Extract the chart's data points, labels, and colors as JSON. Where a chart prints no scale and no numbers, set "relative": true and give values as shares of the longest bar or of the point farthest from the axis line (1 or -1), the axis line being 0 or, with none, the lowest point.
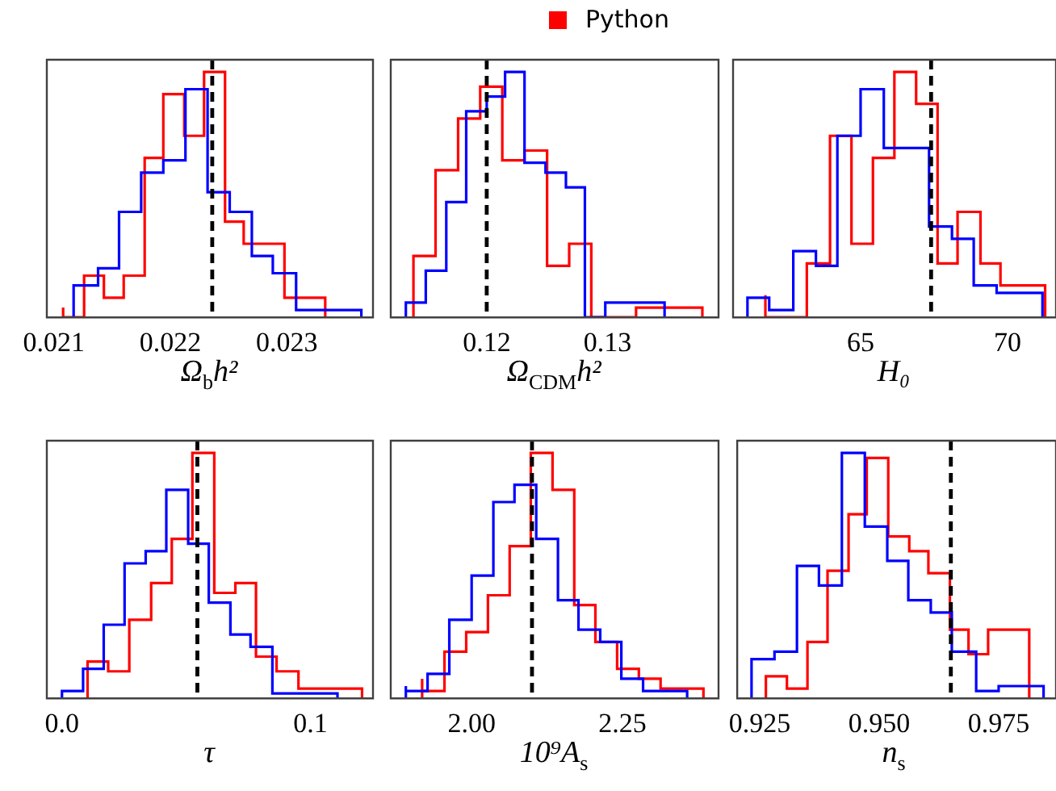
{
  "chart_data": [
    {
      "type": "step",
      "relative": true,
      "legend": "top",
      "tick_labels": "x",
      "xlabel": "Ω$_{b}$h²",
      "xlim": [
        0.02094,
        0.02374
      ],
      "xticks": [
        {
          "value": 0.021,
          "label": "0.021"
        },
        {
          "value": 0.022,
          "label": "0.022"
        },
        {
          "value": 0.023,
          "label": "0.023"
        }
      ],
      "ref_lines": [
        {
          "axis": "x",
          "value": 0.02236,
          "color": "#000000",
          "line_style": "dashed"
        }
      ],
      "series": [
        {
          "color": "#0000ff",
          "x": [
            0.02117,
            0.02117,
            0.02138,
            0.02156,
            0.02175,
            0.02194,
            0.02213,
            0.02232,
            0.02251,
            0.0227,
            0.02288,
            0.02308,
            0.02327,
            0.02346,
            0.02364,
            0.02364
          ],
          "values": [
            0,
            0.08,
            0.13,
            0.2,
            0.43,
            0.59,
            0.64,
            0.93,
            0.51,
            0.43,
            0.25,
            0.18,
            0.03,
            0.03,
            0.03,
            0
          ]
        },
        {
          "name": "Python",
          "color": "#ff0000",
          "x": [
            0.02108,
            0.02108,
            0.02126,
            0.02143,
            0.0216,
            0.02178,
            0.02194,
            0.02212,
            0.02229,
            0.02247,
            0.02263,
            0.02281,
            0.02298,
            0.02315,
            0.02333,
            0.02333
          ],
          "values": [
            0,
            0.04,
            0,
            0.17,
            0.08,
            0.17,
            0.65,
            0.91,
            0.74,
            1,
            0.39,
            0.3,
            0.3,
            0.08,
            0.08,
            0
          ]
        }
      ]
    },
    {
      "type": "step",
      "relative": true,
      "tick_labels": "x",
      "xlabel": "Ω$_{CDM}$h²",
      "xlim": [
        0.11205,
        0.1392
      ],
      "xticks": [
        {
          "value": 0.12,
          "label": "0.12"
        },
        {
          "value": 0.13,
          "label": "0.13"
        }
      ],
      "ref_lines": [
        {
          "axis": "x",
          "value": 0.12,
          "color": "#000000",
          "line_style": "dashed"
        }
      ],
      "series": [
        {
          "color": "#0000ff",
          "x": [
            0.1133,
            0.1133,
            0.11495,
            0.11665,
            0.1183,
            0.12,
            0.12152,
            0.12313,
            0.12487,
            0.12656,
            0.12813,
            0.12982,
            0.13147,
            0.13313,
            0.13473,
            0.13473
          ],
          "values": [
            0,
            0.06,
            0.06,
            0.19,
            0.47,
            0.84,
            0.9,
            1,
            0.63,
            0.59,
            0.53,
            0,
            0.06,
            0.06,
            0.06,
            0
          ]
        },
        {
          "color": "#ff0000",
          "x": [
            0.11393,
            0.11393,
            0.11576,
            0.11763,
            0.11946,
            0.12129,
            0.12313,
            0.125,
            0.12683,
            0.12866,
            0.13049,
            0.13237,
            0.1342,
            0.13603,
            0.13786,
            0.13786
          ],
          "values": [
            0,
            0.25,
            0.25,
            0.6,
            0.81,
            0.94,
            0.64,
            0.68,
            0.21,
            0.3,
            0,
            0,
            0.04,
            0.04,
            0.04,
            0
          ]
        }
      ]
    },
    {
      "type": "step",
      "relative": true,
      "tick_labels": "x",
      "xlabel": "H₀",
      "xlim": [
        60.66,
        71.65
      ],
      "xticks": [
        {
          "value": 65,
          "label": "65"
        },
        {
          "value": 70,
          "label": "70"
        }
      ],
      "ref_lines": [
        {
          "axis": "x",
          "value": 67.4,
          "color": "#000000",
          "line_style": "dashed"
        }
      ],
      "series": [
        {
          "color": "#0000ff",
          "x": [
            61.15,
            61.15,
            61.89,
            62.71,
            63.48,
            64.21,
            65,
            65.79,
            66.56,
            67.33,
            68.11,
            68.85,
            69.63,
            70.37,
            71.19,
            71.19
          ],
          "values": [
            0,
            0.03,
            0.08,
            0.03,
            0.27,
            0.21,
            0.74,
            0.93,
            0.69,
            0.69,
            0.37,
            0.32,
            0.13,
            0.1,
            0.1,
            0
          ]
        },
        {
          "color": "#ff0000",
          "x": [
            61.76,
            61.76,
            62.49,
            63.17,
            63.96,
            64.69,
            65.42,
            66.15,
            66.89,
            67.62,
            68.3,
            69.08,
            69.76,
            70.55,
            71.28,
            71.28
          ],
          "values": [
            0,
            0.09,
            0,
            0,
            0.22,
            0.74,
            0.3,
            0.65,
            1,
            0.87,
            0.22,
            0.43,
            0.22,
            0.13,
            0.13,
            0
          ]
        }
      ]
    },
    {
      "type": "step",
      "relative": true,
      "tick_labels": "x",
      "xlabel": "τ",
      "xlim": [
        -0.0061,
        0.1252
      ],
      "xticks": [
        {
          "value": 0,
          "label": "0.0"
        },
        {
          "value": 0.1,
          "label": "0.1"
        }
      ],
      "ref_lines": [
        {
          "axis": "x",
          "value": 0.0545,
          "color": "#000000",
          "line_style": "dashed"
        }
      ],
      "series": [
        {
          "color": "#0000ff",
          "x": [
            0,
            0,
            0.0085,
            0.0168,
            0.0252,
            0.0337,
            0.042,
            0.0508,
            0.0591,
            0.0678,
            0.0759,
            0.0847,
            0.0934,
            0.1022,
            0.1109,
            0.1109
          ],
          "values": [
            0,
            0.02,
            0.03,
            0.12,
            0.3,
            0.55,
            0.6,
            0.85,
            0.63,
            0.39,
            0.26,
            0.21,
            0.02,
            0.02,
            0.02,
            0
          ]
        },
        {
          "color": "#ff0000",
          "x": [
            0.0103,
            0.0103,
            0.0186,
            0.0271,
            0.0359,
            0.0442,
            0.0525,
            0.0613,
            0.0698,
            0.0781,
            0.0864,
            0.0952,
            0.1037,
            0.112,
            0.1208,
            0.1208
          ],
          "values": [
            0,
            0.07,
            0.15,
            0.11,
            0.32,
            0.47,
            0.65,
            1,
            0.43,
            0.47,
            0.17,
            0.11,
            0.04,
            0.04,
            0.04,
            0
          ]
        }
      ]
    },
    {
      "type": "step",
      "relative": true,
      "tick_labels": "x",
      "xlabel": "10⁹A$_{s}$",
      "xlim": [
        1.866,
        2.409
      ],
      "xticks": [
        {
          "value": 2,
          "label": "2.00"
        },
        {
          "value": 2.25,
          "label": "2.25"
        }
      ],
      "ref_lines": [
        {
          "axis": "x",
          "value": 2.1,
          "color": "#000000",
          "line_style": "dashed"
        }
      ],
      "series": [
        {
          "color": "#0000ff",
          "x": [
            1.891,
            1.891,
            1.927,
            1.963,
            2,
            2.036,
            2.071,
            2.107,
            2.143,
            2.177,
            2.213,
            2.248,
            2.284,
            2.321,
            2.357,
            2.357
          ],
          "values": [
            0,
            0.05,
            0.03,
            0.1,
            0.32,
            0.5,
            0.8,
            0.87,
            0.65,
            0.4,
            0.28,
            0.23,
            0.08,
            0.03,
            0.03,
            0
          ]
        },
        {
          "color": "#ff0000",
          "x": [
            1.918,
            1.918,
            1.955,
            1.991,
            2.027,
            2.063,
            2.098,
            2.134,
            2.17,
            2.205,
            2.241,
            2.277,
            2.313,
            2.348,
            2.384,
            2.384
          ],
          "values": [
            0,
            0.08,
            0.03,
            0.19,
            0.27,
            0.42,
            0.62,
            1,
            0.85,
            0.38,
            0.23,
            0.12,
            0.08,
            0.04,
            0.04,
            0
          ]
        }
      ]
    },
    {
      "type": "step",
      "relative": true,
      "tick_labels": "x",
      "xlabel": "n$_{s}$",
      "xlim": [
        0.9203,
        0.987
      ],
      "xticks": [
        {
          "value": 0.925,
          "label": "0.925"
        },
        {
          "value": 0.95,
          "label": "0.950"
        },
        {
          "value": 0.975,
          "label": "0.975"
        }
      ],
      "ref_lines": [
        {
          "axis": "x",
          "value": 0.965,
          "color": "#000000",
          "line_style": "dashed"
        }
      ],
      "series": [
        {
          "color": "#0000ff",
          "x": [
            0.9233,
            0.9233,
            0.9281,
            0.9328,
            0.9374,
            0.9422,
            0.947,
            0.9517,
            0.9561,
            0.9608,
            0.9652,
            0.9703,
            0.975,
            0.9797,
            0.9844,
            0.9844
          ],
          "values": [
            0,
            0.02,
            0.16,
            0.19,
            0.54,
            0.46,
            1,
            0.7,
            0.56,
            0.4,
            0.35,
            0.19,
            0.03,
            0.05,
            0.05,
            0
          ]
        },
        {
          "color": "#ff0000",
          "x": [
            0.9263,
            0.9263,
            0.9307,
            0.935,
            0.9392,
            0.9436,
            0.9474,
            0.9519,
            0.9563,
            0.9603,
            0.9648,
            0.9687,
            0.9728,
            0.9772,
            0.9814,
            0.9814
          ],
          "values": [
            0,
            0.09,
            0.09,
            0.04,
            0.23,
            0.52,
            0.75,
            0.98,
            0.66,
            0.6,
            0.51,
            0.28,
            0.18,
            0.28,
            0.28,
            0
          ]
        }
      ]
    }
  ]
}
